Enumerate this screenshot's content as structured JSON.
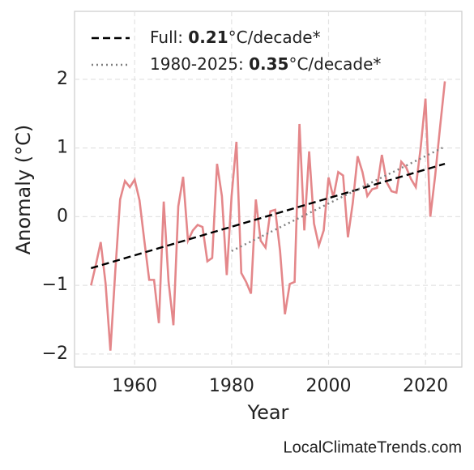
{
  "chart_data": {
    "type": "line",
    "xlabel": "Year",
    "ylabel": "Anomaly (°C)",
    "source": "LocalClimateTrends.com",
    "xlim": [
      1947.6,
      2027.5
    ],
    "ylim": [
      -2.19,
      2.99
    ],
    "xticks": [
      1960,
      1980,
      2000,
      2020
    ],
    "yticks": [
      {
        "value": -2,
        "label": "−2"
      },
      {
        "value": -1,
        "label": "−1"
      },
      0,
      1,
      2
    ],
    "grid": true,
    "legend_position": "upper-left",
    "series": [
      {
        "color": "#e4878a",
        "dash": "solid",
        "x": [
          1951,
          1952,
          1953,
          1954,
          1955,
          1956,
          1957,
          1958,
          1959,
          1960,
          1961,
          1962,
          1963,
          1964,
          1965,
          1966,
          1967,
          1968,
          1969,
          1970,
          1971,
          1972,
          1973,
          1974,
          1975,
          1976,
          1977,
          1978,
          1979,
          1980,
          1981,
          1982,
          1983,
          1984,
          1985,
          1986,
          1987,
          1988,
          1989,
          1990,
          1991,
          1992,
          1993,
          1994,
          1995,
          1996,
          1997,
          1998,
          1999,
          2000,
          2001,
          2002,
          2003,
          2004,
          2005,
          2006,
          2007,
          2008,
          2009,
          2010,
          2011,
          2012,
          2013,
          2014,
          2015,
          2016,
          2017,
          2018,
          2019,
          2020,
          2021,
          2022,
          2023,
          2024
        ],
        "values": [
          -1.0,
          -0.7,
          -0.37,
          -0.97,
          -1.95,
          -0.8,
          0.25,
          0.52,
          0.43,
          0.54,
          0.24,
          -0.35,
          -0.92,
          -0.92,
          -1.55,
          0.22,
          -0.95,
          -1.58,
          0.15,
          0.58,
          -0.35,
          -0.2,
          -0.12,
          -0.15,
          -0.65,
          -0.6,
          0.77,
          0.3,
          -0.85,
          0.3,
          1.09,
          -0.82,
          -0.95,
          -1.12,
          0.25,
          -0.35,
          -0.45,
          0.08,
          0.1,
          -0.5,
          -1.42,
          -0.98,
          -0.95,
          1.35,
          -0.2,
          0.95,
          -0.1,
          -0.42,
          -0.2,
          0.57,
          0.28,
          0.65,
          0.6,
          -0.3,
          0.2,
          0.88,
          0.65,
          0.3,
          0.4,
          0.42,
          0.9,
          0.5,
          0.37,
          0.35,
          0.8,
          0.72,
          0.55,
          0.43,
          1.0,
          1.72,
          0.0,
          0.6,
          1.3,
          1.97
        ]
      },
      {
        "name": [
          "Full: ",
          "0.21",
          "°C/decade*"
        ],
        "color": "#000000",
        "dash": "dashed",
        "x": [
          1951,
          2024
        ],
        "values": [
          -0.75,
          0.77
        ]
      },
      {
        "name": [
          "1980-2025: ",
          "0.35",
          "°C/decade*"
        ],
        "color": "#808080",
        "dash": "dotted",
        "x": [
          1980,
          2024
        ],
        "values": [
          -0.5,
          1.02
        ]
      }
    ]
  }
}
